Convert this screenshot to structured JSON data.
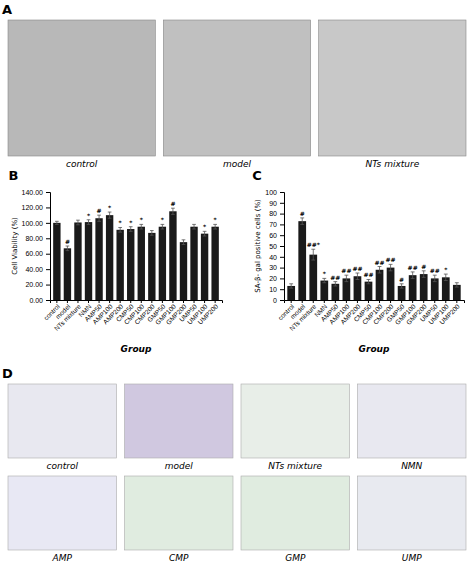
{
  "chart_data": [
    {
      "type": "image",
      "title": "A",
      "categories": [
        "control",
        "model",
        "NTs mixture"
      ]
    },
    {
      "type": "bar",
      "title": "B",
      "x_label": "Group",
      "y_label": "Cell Viability (%)",
      "categories": [
        "control",
        "model",
        "NTs mixture",
        "NMN",
        "AMP50",
        "AMP100",
        "AMP200",
        "CMP50",
        "CMP100",
        "CMP200",
        "GMP50",
        "GMP100",
        "GMP200",
        "UMP50",
        "UMP100",
        "UMP200"
      ],
      "values": [
        100.0,
        67.0,
        100.5,
        101.0,
        106.0,
        110.0,
        91.0,
        92.0,
        95.0,
        87.0,
        95.0,
        115.0,
        75.0,
        95.0,
        86.0,
        95.0
      ],
      "errors": [
        2.0,
        3.0,
        3.0,
        3.0,
        4.0,
        4.0,
        3.0,
        3.0,
        3.0,
        3.0,
        3.0,
        4.0,
        3.0,
        3.0,
        3.0,
        3.0
      ],
      "color": "#1a1a1a",
      "ylim": [
        0,
        140
      ],
      "yticks": [
        {
          "value": 0,
          "label": "0.00"
        },
        {
          "value": 20,
          "label": "20.00"
        },
        {
          "value": 40,
          "label": "40.00"
        },
        {
          "value": 60,
          "label": "60.00"
        },
        {
          "value": 80,
          "label": "80.00"
        },
        {
          "value": 100,
          "label": "100.00"
        },
        {
          "value": 120,
          "label": "120.00"
        },
        {
          "value": 140,
          "label": "140.00"
        }
      ],
      "annotations": [
        {
          "category": "model",
          "text": "#"
        },
        {
          "category": "NMN",
          "text": "*"
        },
        {
          "category": "AMP50",
          "text": "#"
        },
        {
          "category": "AMP100",
          "text": "*"
        },
        {
          "category": "AMP200",
          "text": "*"
        },
        {
          "category": "CMP50",
          "text": "*"
        },
        {
          "category": "CMP100",
          "text": "*"
        },
        {
          "category": "GMP50",
          "text": "*"
        },
        {
          "category": "GMP100",
          "text": "#"
        },
        {
          "category": "UMP100",
          "text": "*"
        },
        {
          "category": "UMP200",
          "text": "*"
        }
      ]
    },
    {
      "type": "bar",
      "title": "C",
      "x_label": "Group",
      "y_label": "SA-β- gal positive cells (%)",
      "categories": [
        "control",
        "model",
        "NTs mixture",
        "NMN",
        "AMP50",
        "AMP100",
        "AMP200",
        "CMP50",
        "CMP100",
        "CMP200",
        "GMP50",
        "GMP100",
        "GMP200",
        "UMP50",
        "UMP100",
        "UMP200"
      ],
      "values": [
        13.0,
        73.0,
        42.0,
        18.0,
        15.0,
        20.0,
        22.0,
        17.0,
        28.0,
        30.0,
        13.0,
        23.0,
        24.0,
        20.0,
        21.0,
        14.0
      ],
      "errors": [
        2.0,
        3.0,
        5.0,
        2.0,
        2.0,
        3.0,
        3.0,
        2.0,
        3.0,
        3.0,
        2.0,
        3.0,
        3.0,
        3.0,
        3.0,
        2.0
      ],
      "color": "#1a1a1a",
      "ylim": [
        0,
        100
      ],
      "yticks": [
        0,
        10,
        20,
        30,
        40,
        50,
        60,
        70,
        80,
        90,
        100
      ],
      "annotations": [
        {
          "category": "model",
          "text": "#"
        },
        {
          "category": "NTs mixture",
          "text": "##*"
        },
        {
          "category": "NMN",
          "text": "*"
        },
        {
          "category": "AMP50",
          "text": "##"
        },
        {
          "category": "AMP100",
          "text": "##"
        },
        {
          "category": "AMP200",
          "text": "##"
        },
        {
          "category": "CMP50",
          "text": "##"
        },
        {
          "category": "CMP100",
          "text": "##"
        },
        {
          "category": "CMP200",
          "text": "##"
        },
        {
          "category": "GMP50",
          "text": "#"
        },
        {
          "category": "GMP100",
          "text": "##"
        },
        {
          "category": "GMP200",
          "text": "#"
        },
        {
          "category": "UMP50",
          "text": "##"
        },
        {
          "category": "UMP100",
          "text": "*"
        }
      ]
    },
    {
      "type": "image",
      "title": "D",
      "categories": [
        "control",
        "model",
        "NTs mixture",
        "NMN",
        "AMP",
        "CMP",
        "GMP",
        "UMP"
      ],
      "colors": [
        "#e8e8f0",
        "#d0c8e0",
        "#e8eee8",
        "#e8e8f0",
        "#e8e8f4",
        "#e0ece0",
        "#e0ece0",
        "#e8eaf0"
      ]
    }
  ]
}
